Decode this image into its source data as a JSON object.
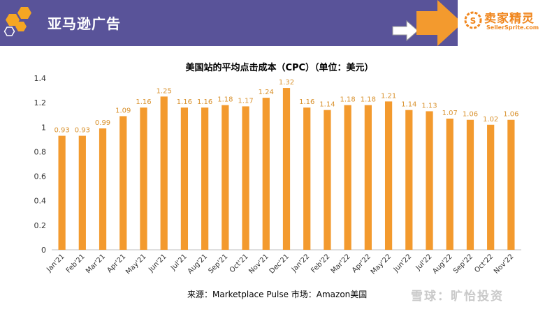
{
  "header": {
    "title": "亚马逊广告",
    "brand_name": "卖家精灵",
    "brand_url": "SellerSprite.com",
    "colors": {
      "bar": "#595399",
      "accent": "#f0a13a"
    }
  },
  "footer": {
    "source": "来源：Marketplace Pulse    市场：Amazon美国"
  },
  "watermark": {
    "text": "雪球：旷怡投资"
  },
  "chart_data": {
    "type": "bar",
    "title": "美国站的平均点击成本（CPC）（单位：美元）",
    "categories": [
      "Jan'21",
      "Feb'21",
      "Mar'21",
      "Apr'21",
      "May'21",
      "Jun'21",
      "Jul'21",
      "Aug'21",
      "Sep'21",
      "Oct'21",
      "Nov'21",
      "Dec'21",
      "Jan'22",
      "Feb'22",
      "Mar'22",
      "Apr'22",
      "May'22",
      "Jun'22",
      "Jul'22",
      "Aug'22",
      "Sep'22",
      "Oct'22",
      "Nov'22"
    ],
    "values": [
      0.93,
      0.93,
      0.99,
      1.09,
      1.16,
      1.25,
      1.16,
      1.16,
      1.18,
      1.17,
      1.24,
      1.32,
      1.16,
      1.14,
      1.18,
      1.18,
      1.21,
      1.14,
      1.13,
      1.07,
      1.06,
      1.02,
      1.06
    ],
    "data_labels": [
      "0.93",
      "0.93",
      "0.99",
      "1.09",
      "1.16",
      "1.25",
      "1.16",
      "1.16",
      "1.18",
      "1.17",
      "1.24",
      "1.32",
      "1.16",
      "1.14",
      "1.18",
      "1.18",
      "1.21",
      "1.14",
      "1.13",
      "1.07",
      "1.06",
      "1.02",
      "1.06"
    ],
    "yticks": [
      0,
      0.2,
      0.4,
      0.6,
      0.8,
      1,
      1.2,
      1.4
    ],
    "ytick_labels": [
      "0",
      "0.2",
      "0.4",
      "0.6",
      "0.8",
      "1",
      "1.2",
      "1.4"
    ],
    "ylim": [
      0,
      1.4
    ],
    "grid": false,
    "legend": "none",
    "bar_color": "#f39a2e",
    "label_color": "#d9922e"
  }
}
